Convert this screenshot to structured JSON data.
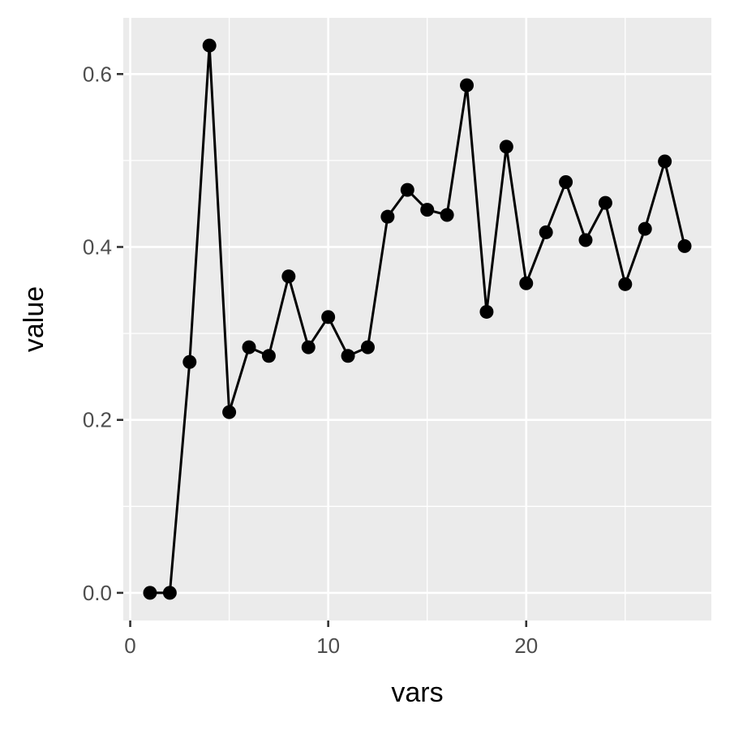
{
  "chart_data": {
    "type": "line",
    "title": "",
    "xlabel": "vars",
    "ylabel": "value",
    "xlim": [
      -0.35,
      29.35
    ],
    "ylim": [
      -0.032,
      0.665
    ],
    "x_ticks": [
      0,
      10,
      20
    ],
    "x_tick_labels": [
      "0",
      "10",
      "20"
    ],
    "y_ticks": [
      0.0,
      0.2,
      0.4,
      0.6
    ],
    "y_tick_labels": [
      "0.0",
      "0.2",
      "0.4",
      "0.6"
    ],
    "grid": true,
    "legend": "none",
    "series": [
      {
        "x": [
          1,
          2,
          3,
          4,
          5,
          6,
          7,
          8,
          9,
          10,
          11,
          12,
          13,
          14,
          15,
          16,
          17,
          18,
          19,
          20,
          21,
          22,
          23,
          24,
          25,
          26,
          27,
          28
        ],
        "values": [
          0.0,
          0.0,
          0.267,
          0.633,
          0.209,
          0.284,
          0.274,
          0.366,
          0.284,
          0.319,
          0.274,
          0.284,
          0.435,
          0.466,
          0.443,
          0.437,
          0.587,
          0.325,
          0.516,
          0.358,
          0.417,
          0.475,
          0.408,
          0.451,
          0.357,
          0.421,
          0.499,
          0.401
        ]
      }
    ],
    "colors": {
      "panel": "#EBEBEB",
      "grid": "#FFFFFF",
      "line": "#000000",
      "point": "#000000",
      "tick_label": "#4D4D4D",
      "axis_title": "#000000"
    }
  }
}
